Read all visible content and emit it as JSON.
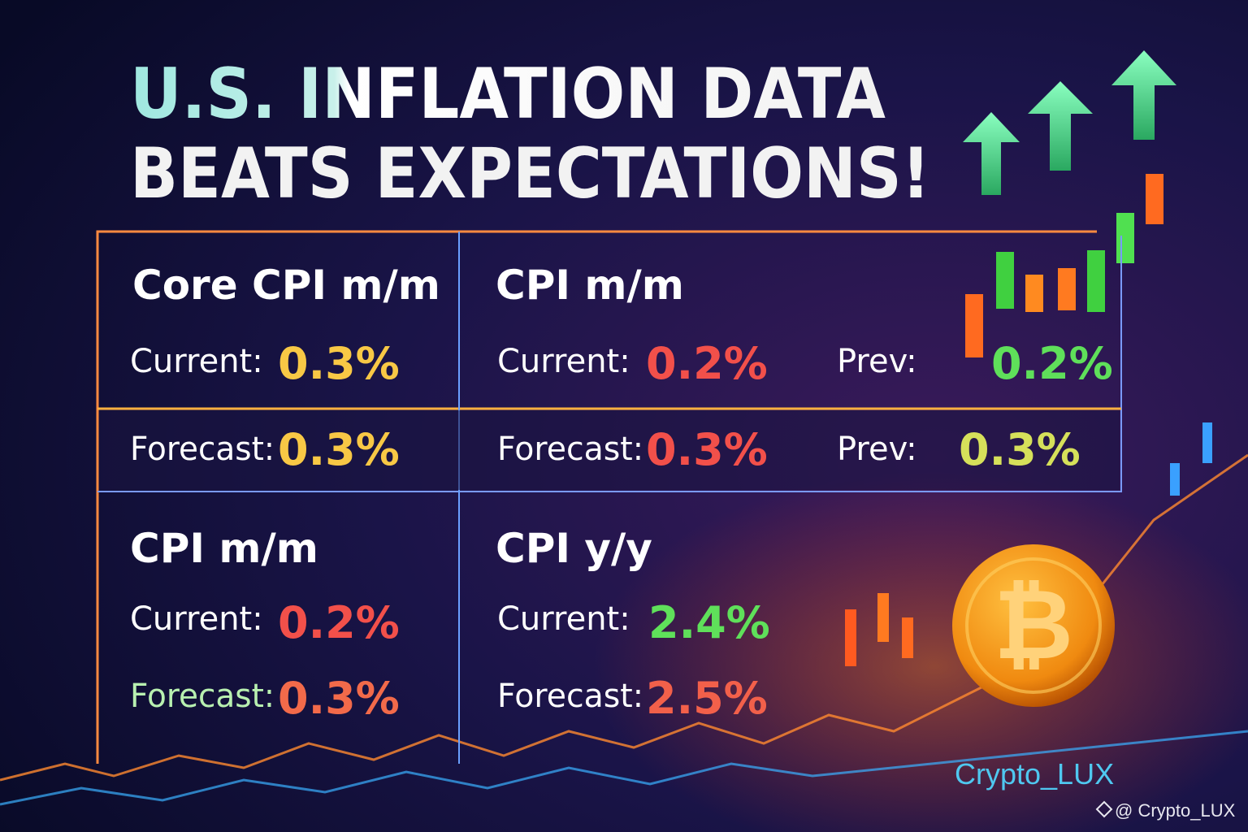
{
  "header": {
    "title_line1": "U.S. INFLATION DATA",
    "title_line2": "BEATS EXPECTATIONS!"
  },
  "panels": [
    {
      "heading": "Core CPI m/m",
      "rows": [
        {
          "label": "Current:",
          "value": "0.3%"
        },
        {
          "label": "Forecast:",
          "value": "0.3%"
        }
      ]
    },
    {
      "heading": "CPI m/m",
      "rows": [
        {
          "label": "Current:",
          "value": "0.2%"
        },
        {
          "label": "Prev:",
          "value": "0.2%"
        },
        {
          "label": "Forecast:",
          "value": "0.3%"
        },
        {
          "label": "Prev:",
          "value": "0.3%"
        }
      ]
    },
    {
      "heading": "CPI m/m",
      "rows": [
        {
          "label": "Current:",
          "value": "0.2%"
        },
        {
          "label": "Forecast:",
          "value": "0.3%"
        }
      ]
    },
    {
      "heading": "CPI y/y",
      "rows": [
        {
          "label": "Current:",
          "value": "2.4%"
        },
        {
          "label": "Forecast:",
          "value": "2.5%"
        }
      ]
    }
  ],
  "watermark": "Crypto_LUX",
  "footer": "@ Crypto_LUX"
}
